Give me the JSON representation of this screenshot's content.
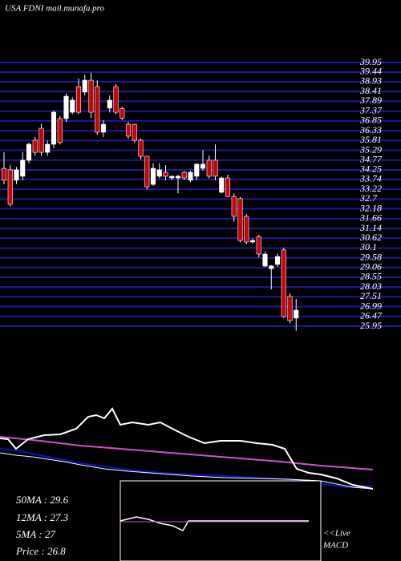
{
  "chart_data": {
    "type": "candlestick",
    "title": "USA FDNI mail.munafa.pro",
    "ylim": [
      25.95,
      39.95
    ],
    "yticks": [
      39.95,
      39.44,
      38.93,
      38.41,
      37.89,
      37.37,
      36.85,
      36.33,
      35.81,
      35.29,
      34.77,
      34.25,
      33.74,
      33.22,
      32.7,
      32.18,
      31.66,
      31.14,
      30.62,
      30.1,
      29.58,
      29.06,
      28.55,
      28.03,
      27.51,
      26.99,
      26.47,
      25.95
    ],
    "grid": true,
    "grid_color": "#1a1aa0",
    "up_color": "#ffffff",
    "down_color": "#cc0000",
    "open": [
      34.33,
      34.25,
      33.7,
      33.91,
      34.76,
      35.82,
      36.46,
      35.18,
      35.61,
      36.97,
      36.97,
      37.31,
      38.67,
      38.38,
      39.01,
      38.67,
      36.25,
      37.53,
      38.67,
      37.5,
      36.67,
      36.67,
      35.82,
      34.97,
      33.48,
      33.91,
      34.12,
      33.82,
      33.82,
      34.12,
      33.7,
      33.91,
      34.33,
      34.76,
      34.76,
      33.06,
      33.82,
      32.84,
      32.72,
      31.78,
      30.42,
      30.7,
      29.14,
      29.0,
      29.23,
      30.0,
      27.53,
      26.38
    ],
    "high": [
      35.18,
      34.5,
      34.4,
      35.2,
      35.7,
      36.0,
      36.7,
      35.8,
      37.4,
      37.1,
      38.3,
      38.1,
      39.1,
      39.3,
      39.4,
      39.0,
      36.9,
      38.2,
      38.8,
      37.6,
      36.8,
      36.7,
      35.9,
      35.0,
      34.6,
      34.6,
      34.5,
      33.95,
      34.0,
      34.2,
      34.2,
      34.6,
      35.3,
      35.0,
      35.6,
      33.9,
      34.0,
      33.0,
      32.8,
      31.9,
      30.6,
      30.8,
      29.9,
      29.2,
      29.8,
      30.1,
      27.7,
      27.4
    ],
    "low": [
      33.48,
      32.3,
      33.5,
      33.7,
      34.6,
      35.0,
      35.0,
      35.0,
      35.4,
      35.6,
      36.8,
      37.2,
      37.2,
      38.2,
      37.0,
      36.1,
      36.0,
      37.3,
      37.2,
      36.9,
      35.9,
      35.7,
      34.8,
      33.2,
      33.4,
      33.8,
      33.7,
      33.7,
      33.0,
      33.7,
      33.6,
      33.7,
      34.2,
      33.8,
      33.7,
      33.0,
      32.8,
      31.5,
      30.4,
      30.3,
      30.35,
      29.6,
      29.1,
      27.9,
      29.1,
      26.4,
      26.1,
      25.7
    ],
    "close": [
      33.7,
      32.42,
      34.25,
      34.76,
      35.61,
      35.18,
      35.18,
      35.61,
      37.31,
      35.7,
      38.16,
      37.95,
      37.31,
      39.01,
      37.31,
      36.25,
      36.67,
      37.95,
      37.31,
      37.0,
      36.04,
      35.82,
      34.97,
      33.35,
      34.33,
      34.25,
      33.91,
      33.91,
      33.91,
      33.82,
      34.12,
      34.55,
      34.55,
      33.91,
      33.91,
      33.82,
      32.84,
      31.78,
      30.5,
      30.42,
      30.5,
      29.78,
      29.78,
      29.15,
      29.65,
      26.46,
      26.25,
      26.8
    ],
    "info_labels": [
      "50MA : 29.6",
      "12MA : 27.3",
      "5MA : 27",
      "Price   : 26.8"
    ],
    "macd_label": [
      "<<Live",
      "MACD"
    ]
  }
}
